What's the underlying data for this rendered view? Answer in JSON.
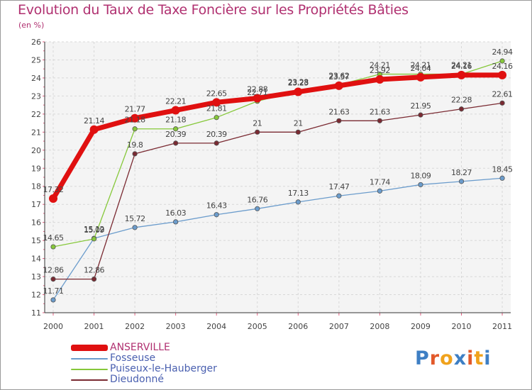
{
  "header": {
    "title": "Evolution du Taux de Taxe Foncière sur les Propriétés Bâties",
    "subtitle": "(en %)"
  },
  "logo": {
    "letters": [
      "P",
      "r",
      "o",
      "x",
      "i",
      "t",
      "i"
    ],
    "colors": [
      "#3e7fc4",
      "#e2592a",
      "#f0a21c",
      "#3e7fc4",
      "#e2592a",
      "#f0a21c",
      "#3e7fc4"
    ]
  },
  "chart_data": {
    "type": "line",
    "title": "Evolution du Taux de Taxe Foncière sur les Propriétés Bâties",
    "ylabel": "(en %)",
    "xlabel": "",
    "x": [
      "2000",
      "2001",
      "2002",
      "2003",
      "2004",
      "2005",
      "2006",
      "2007",
      "2008",
      "2009",
      "2010",
      "2011"
    ],
    "ylim": [
      11,
      26
    ],
    "yticks": [
      "11",
      "12",
      "13",
      "14",
      "15",
      "16",
      "17",
      "18",
      "19",
      "20",
      "21",
      "22",
      "23",
      "24",
      "25",
      "26"
    ],
    "grid": true,
    "legend_position": "bottom-left",
    "series": [
      {
        "name": "ANSERVILLE",
        "color": "#e01010",
        "emphasis": true,
        "values": [
          17.32,
          21.14,
          21.77,
          22.21,
          22.65,
          22.88,
          23.23,
          23.57,
          23.92,
          24.04,
          24.16,
          24.16
        ],
        "labels": [
          "17.32",
          "21.14",
          "21.77",
          "22.21",
          "22.65",
          "22.88",
          "23.23",
          "23.57",
          "23.92",
          "24.04",
          "24.16",
          "24.16"
        ]
      },
      {
        "name": "Fosseuse",
        "color": "#6b9ccc",
        "emphasis": false,
        "values": [
          11.71,
          15.12,
          15.72,
          16.03,
          16.43,
          16.76,
          17.13,
          17.47,
          17.74,
          18.09,
          18.27,
          18.45
        ],
        "labels": [
          "11.71",
          "15.12",
          "15.72",
          "16.03",
          "16.43",
          "16.76",
          "17.13",
          "17.47",
          "17.74",
          "18.09",
          "18.27",
          "18.45"
        ]
      },
      {
        "name": "Puiseux-le-Hauberger",
        "color": "#86c83a",
        "emphasis": false,
        "values": [
          14.65,
          15.09,
          21.18,
          21.18,
          21.81,
          22.71,
          23.28,
          23.62,
          24.21,
          24.21,
          24.21,
          24.94
        ],
        "labels": [
          "14.65",
          "15.09",
          "21.18",
          "21.18",
          "21.81",
          "22.71",
          "23.28",
          "23.62",
          "24.21",
          "24.21",
          "24.21",
          "24.94"
        ]
      },
      {
        "name": "Dieudonné",
        "color": "#7a2a32",
        "emphasis": false,
        "values": [
          12.86,
          12.86,
          19.8,
          20.39,
          20.39,
          21,
          21,
          21.63,
          21.63,
          21.95,
          22.28,
          22.61
        ],
        "labels": [
          "12.86",
          "12.86",
          "19.8",
          "20.39",
          "20.39",
          "21",
          "21",
          "21.63",
          "21.63",
          "21.95",
          "22.28",
          "22.61"
        ]
      }
    ]
  }
}
